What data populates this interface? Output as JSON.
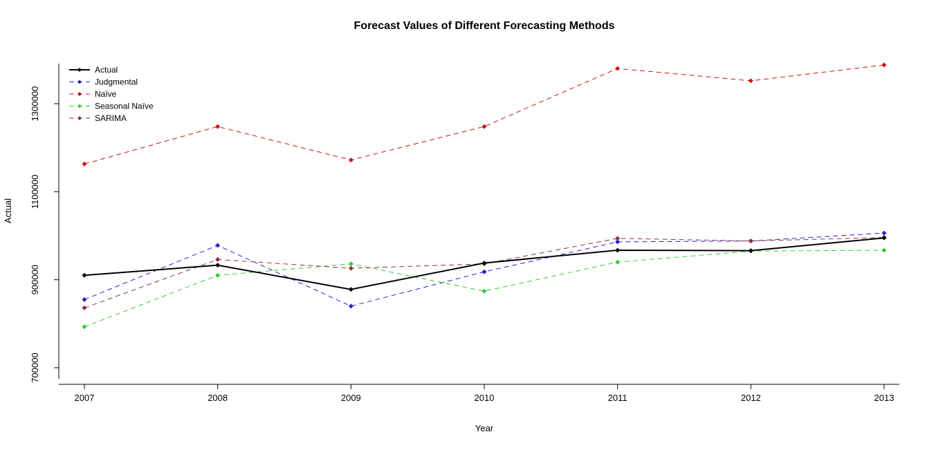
{
  "chart_data": {
    "type": "line",
    "title": "Forecast Values of Different Forecasting Methods",
    "xlabel": "Year",
    "ylabel": "Actual",
    "x": [
      2007,
      2008,
      2009,
      2010,
      2011,
      2012,
      2013
    ],
    "y_ticks": [
      700000,
      900000,
      1100000,
      1300000
    ],
    "ylim": [
      650000,
      1420000
    ],
    "grid": false,
    "legend_position": "top-left",
    "series": [
      {
        "name": "Actual",
        "color": "#000000",
        "dash": "solid",
        "width": 2,
        "values": [
          910000,
          933000,
          878000,
          938000,
          967000,
          966000,
          995000
        ]
      },
      {
        "name": "Judgmental",
        "color": "#2222cc",
        "dash": "dashed",
        "width": 1,
        "values": [
          855000,
          978000,
          840000,
          918000,
          986000,
          988000,
          1006000
        ]
      },
      {
        "name": "Naïve",
        "color": "#cc1111",
        "dash": "dashed",
        "width": 1,
        "values": [
          1163000,
          1248000,
          1172000,
          1248000,
          1380000,
          1352000,
          1388000
        ]
      },
      {
        "name": "Seasonal Naïve",
        "color": "#33cc33",
        "dash": "dashed",
        "width": 1,
        "values": [
          793000,
          910000,
          936000,
          874000,
          940000,
          965000,
          967000
        ]
      },
      {
        "name": "SARIMA",
        "color": "#8b3333",
        "dash": "dashed",
        "width": 1,
        "values": [
          836000,
          946000,
          926000,
          936000,
          994000,
          988000,
          996000
        ]
      }
    ]
  }
}
